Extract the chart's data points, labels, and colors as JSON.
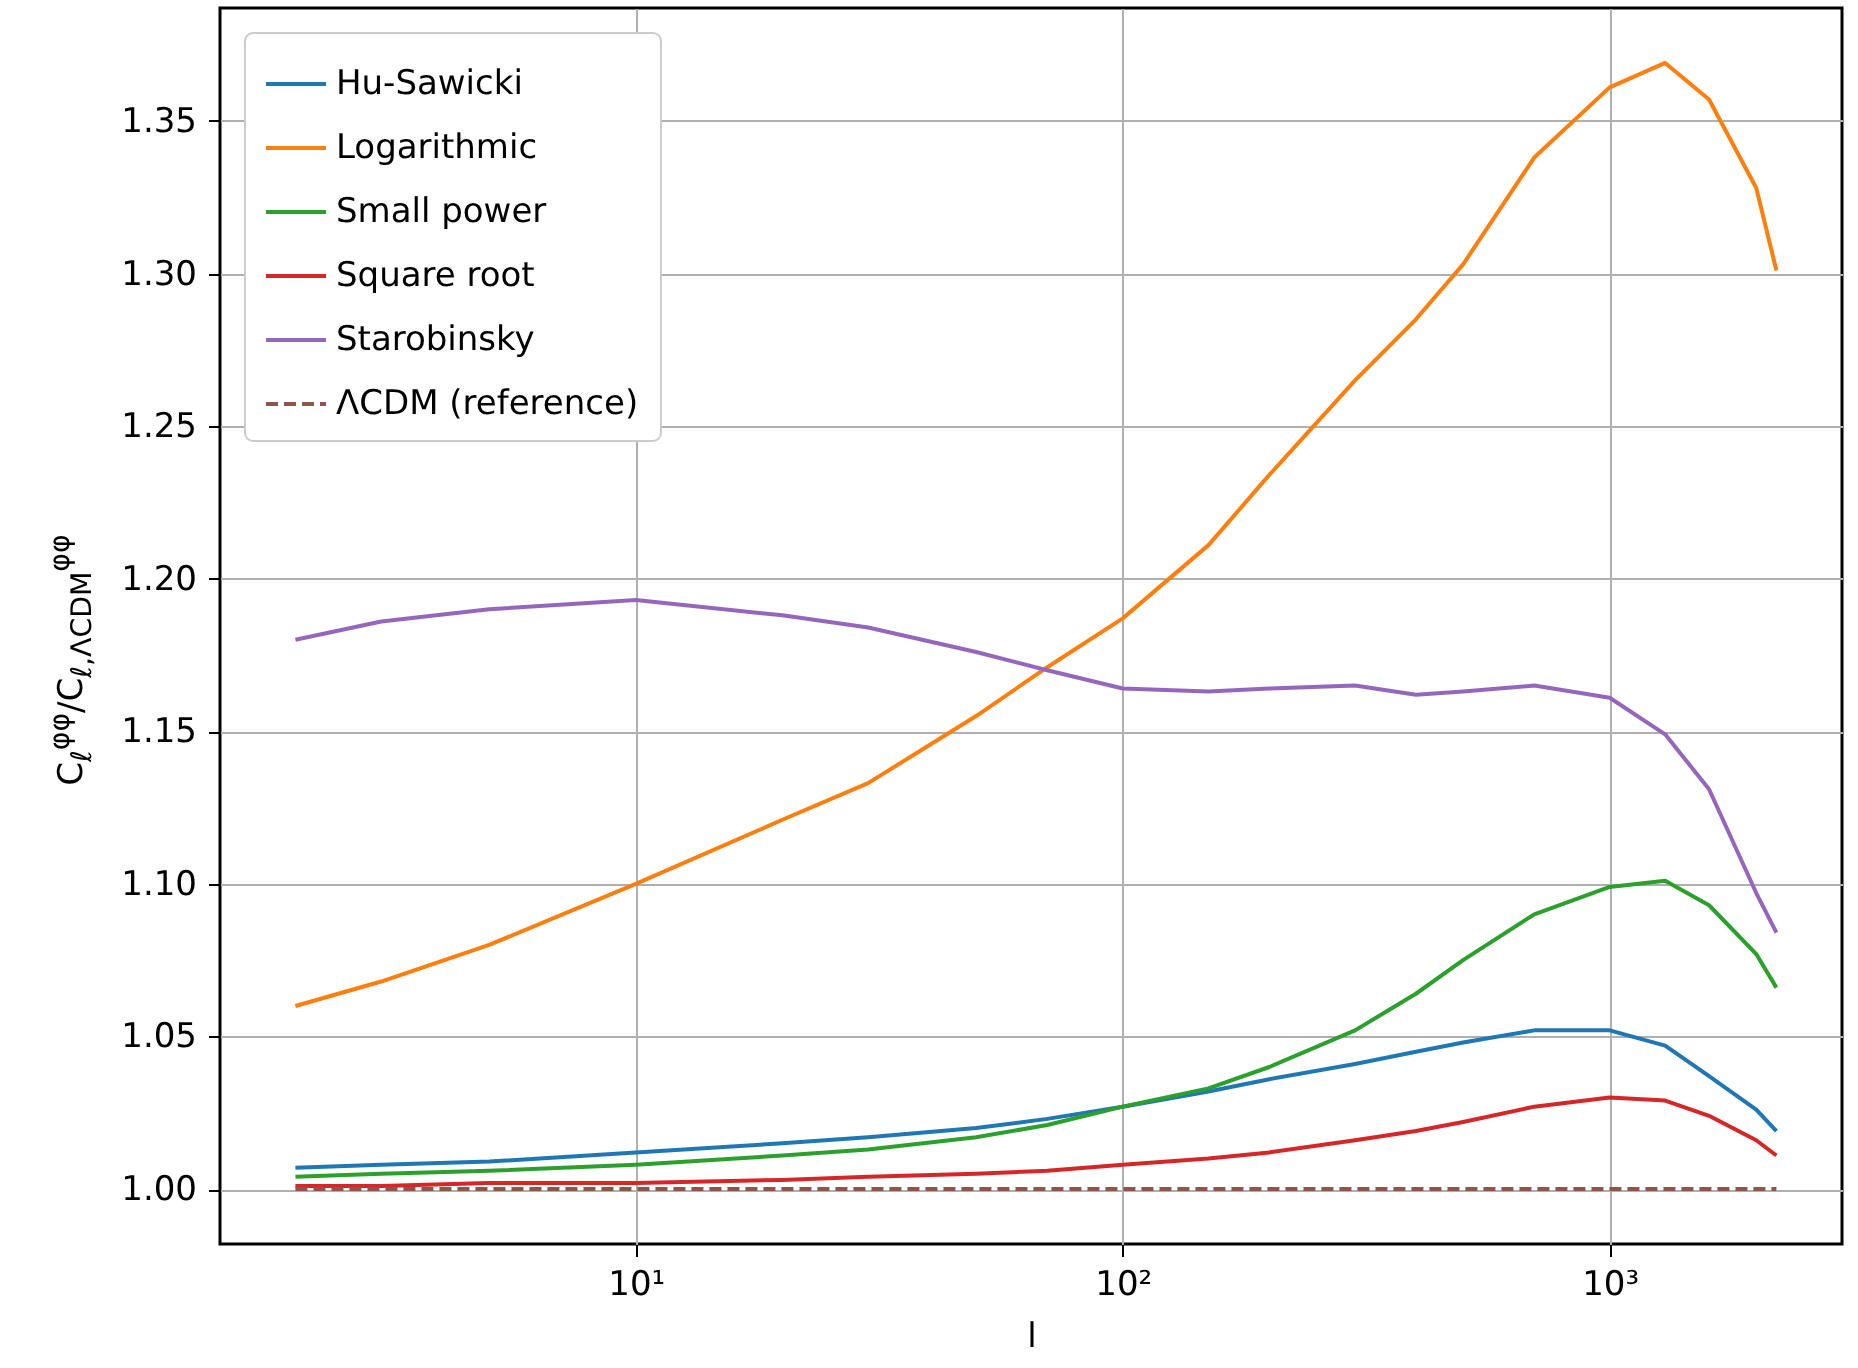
{
  "chart_data": {
    "type": "line",
    "xlabel": "l",
    "ylabel": "C$_{ℓ}$$^{φφ}$/C$_{ℓ,ΛCDM}$$^{φφ}$",
    "x": [
      2,
      3,
      5,
      10,
      20,
      30,
      50,
      70,
      100,
      150,
      200,
      300,
      400,
      500,
      700,
      1000,
      1300,
      1600,
      2000,
      2200
    ],
    "series": [
      {
        "name": "Hu-Sawicki",
        "color": "#1f77b4",
        "values": [
          1.007,
          1.008,
          1.009,
          1.012,
          1.015,
          1.017,
          1.02,
          1.023,
          1.027,
          1.032,
          1.036,
          1.041,
          1.045,
          1.048,
          1.052,
          1.052,
          1.047,
          1.037,
          1.026,
          1.019
        ]
      },
      {
        "name": "Logarithmic",
        "color": "#ff7f0e",
        "values": [
          1.06,
          1.068,
          1.08,
          1.1,
          1.121,
          1.133,
          1.155,
          1.171,
          1.187,
          1.211,
          1.234,
          1.265,
          1.285,
          1.303,
          1.338,
          1.361,
          1.369,
          1.357,
          1.328,
          1.301
        ]
      },
      {
        "name": "Small power",
        "color": "#2ca02c",
        "values": [
          1.004,
          1.005,
          1.006,
          1.008,
          1.011,
          1.013,
          1.017,
          1.021,
          1.027,
          1.033,
          1.04,
          1.052,
          1.064,
          1.075,
          1.09,
          1.099,
          1.101,
          1.093,
          1.077,
          1.066
        ]
      },
      {
        "name": "Square root",
        "color": "#d62728",
        "values": [
          1.001,
          1.001,
          1.002,
          1.002,
          1.003,
          1.004,
          1.005,
          1.006,
          1.008,
          1.01,
          1.012,
          1.016,
          1.019,
          1.022,
          1.027,
          1.03,
          1.029,
          1.024,
          1.016,
          1.011
        ]
      },
      {
        "name": "Starobinsky",
        "color": "#9467bd",
        "values": [
          1.18,
          1.186,
          1.19,
          1.193,
          1.188,
          1.184,
          1.176,
          1.17,
          1.164,
          1.163,
          1.164,
          1.165,
          1.162,
          1.163,
          1.165,
          1.161,
          1.149,
          1.131,
          1.097,
          1.084
        ]
      },
      {
        "name": "ΛCDM (reference)",
        "color": "#8c564b",
        "line_style": "dashed",
        "x": [
          2,
          2200
        ],
        "values": [
          1.0,
          1.0
        ]
      }
    ],
    "log": "x",
    "xlim": [
      1.4,
      3000
    ],
    "xticks": [
      {
        "value": 10,
        "label": "10¹"
      },
      {
        "value": 100,
        "label": "10²"
      },
      {
        "value": 1000,
        "label": "10³"
      }
    ],
    "ylim": [
      0.982,
      1.387
    ],
    "yticks": [
      {
        "value": 1.0,
        "label": "1.00"
      },
      {
        "value": 1.05,
        "label": "1.05"
      },
      {
        "value": 1.1,
        "label": "1.10"
      },
      {
        "value": 1.15,
        "label": "1.15"
      },
      {
        "value": 1.2,
        "label": "1.20"
      },
      {
        "value": 1.25,
        "label": "1.25"
      },
      {
        "value": 1.3,
        "label": "1.30"
      },
      {
        "value": 1.35,
        "label": "1.35"
      }
    ],
    "grid": true,
    "legend": "top left",
    "line_style": "solid"
  }
}
